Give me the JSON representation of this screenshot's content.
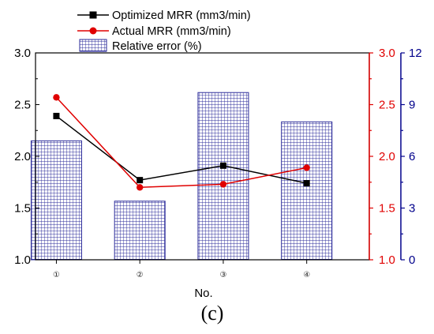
{
  "chart_data": {
    "type": "bar",
    "categories": [
      "①",
      "②",
      "③",
      "④"
    ],
    "xlabel": "No.",
    "panel_label": "(c)",
    "left_axis": {
      "ylim": [
        1.0,
        3.0
      ],
      "ticks": [
        "1.0",
        "1.5",
        "2.0",
        "2.5",
        "3.0"
      ],
      "color": "#000000"
    },
    "right_axis_1": {
      "ylim": [
        1.0,
        3.0
      ],
      "ticks": [
        "1.0",
        "1.5",
        "2.0",
        "2.5",
        "3.0"
      ],
      "color": "#e00000"
    },
    "right_axis_2": {
      "ylim": [
        0,
        12
      ],
      "ticks": [
        "0",
        "3",
        "6",
        "9",
        "12"
      ],
      "color": "#00008b"
    },
    "series": [
      {
        "name": "Optimized MRR (mm3/min)",
        "type": "line",
        "axis": "left",
        "color": "#000000",
        "marker": "square",
        "values": [
          2.39,
          1.77,
          1.91,
          1.74
        ]
      },
      {
        "name": "Actual MRR (mm3/min)",
        "type": "line",
        "axis": "right_1",
        "color": "#e00000",
        "marker": "circle",
        "values": [
          2.57,
          1.7,
          1.73,
          1.89
        ]
      },
      {
        "name": "Relative error (%)",
        "type": "bar",
        "axis": "right_2",
        "color": "#2b2b9a",
        "pattern": "grid",
        "values": [
          6.9,
          3.4,
          9.7,
          8.0
        ]
      }
    ]
  }
}
